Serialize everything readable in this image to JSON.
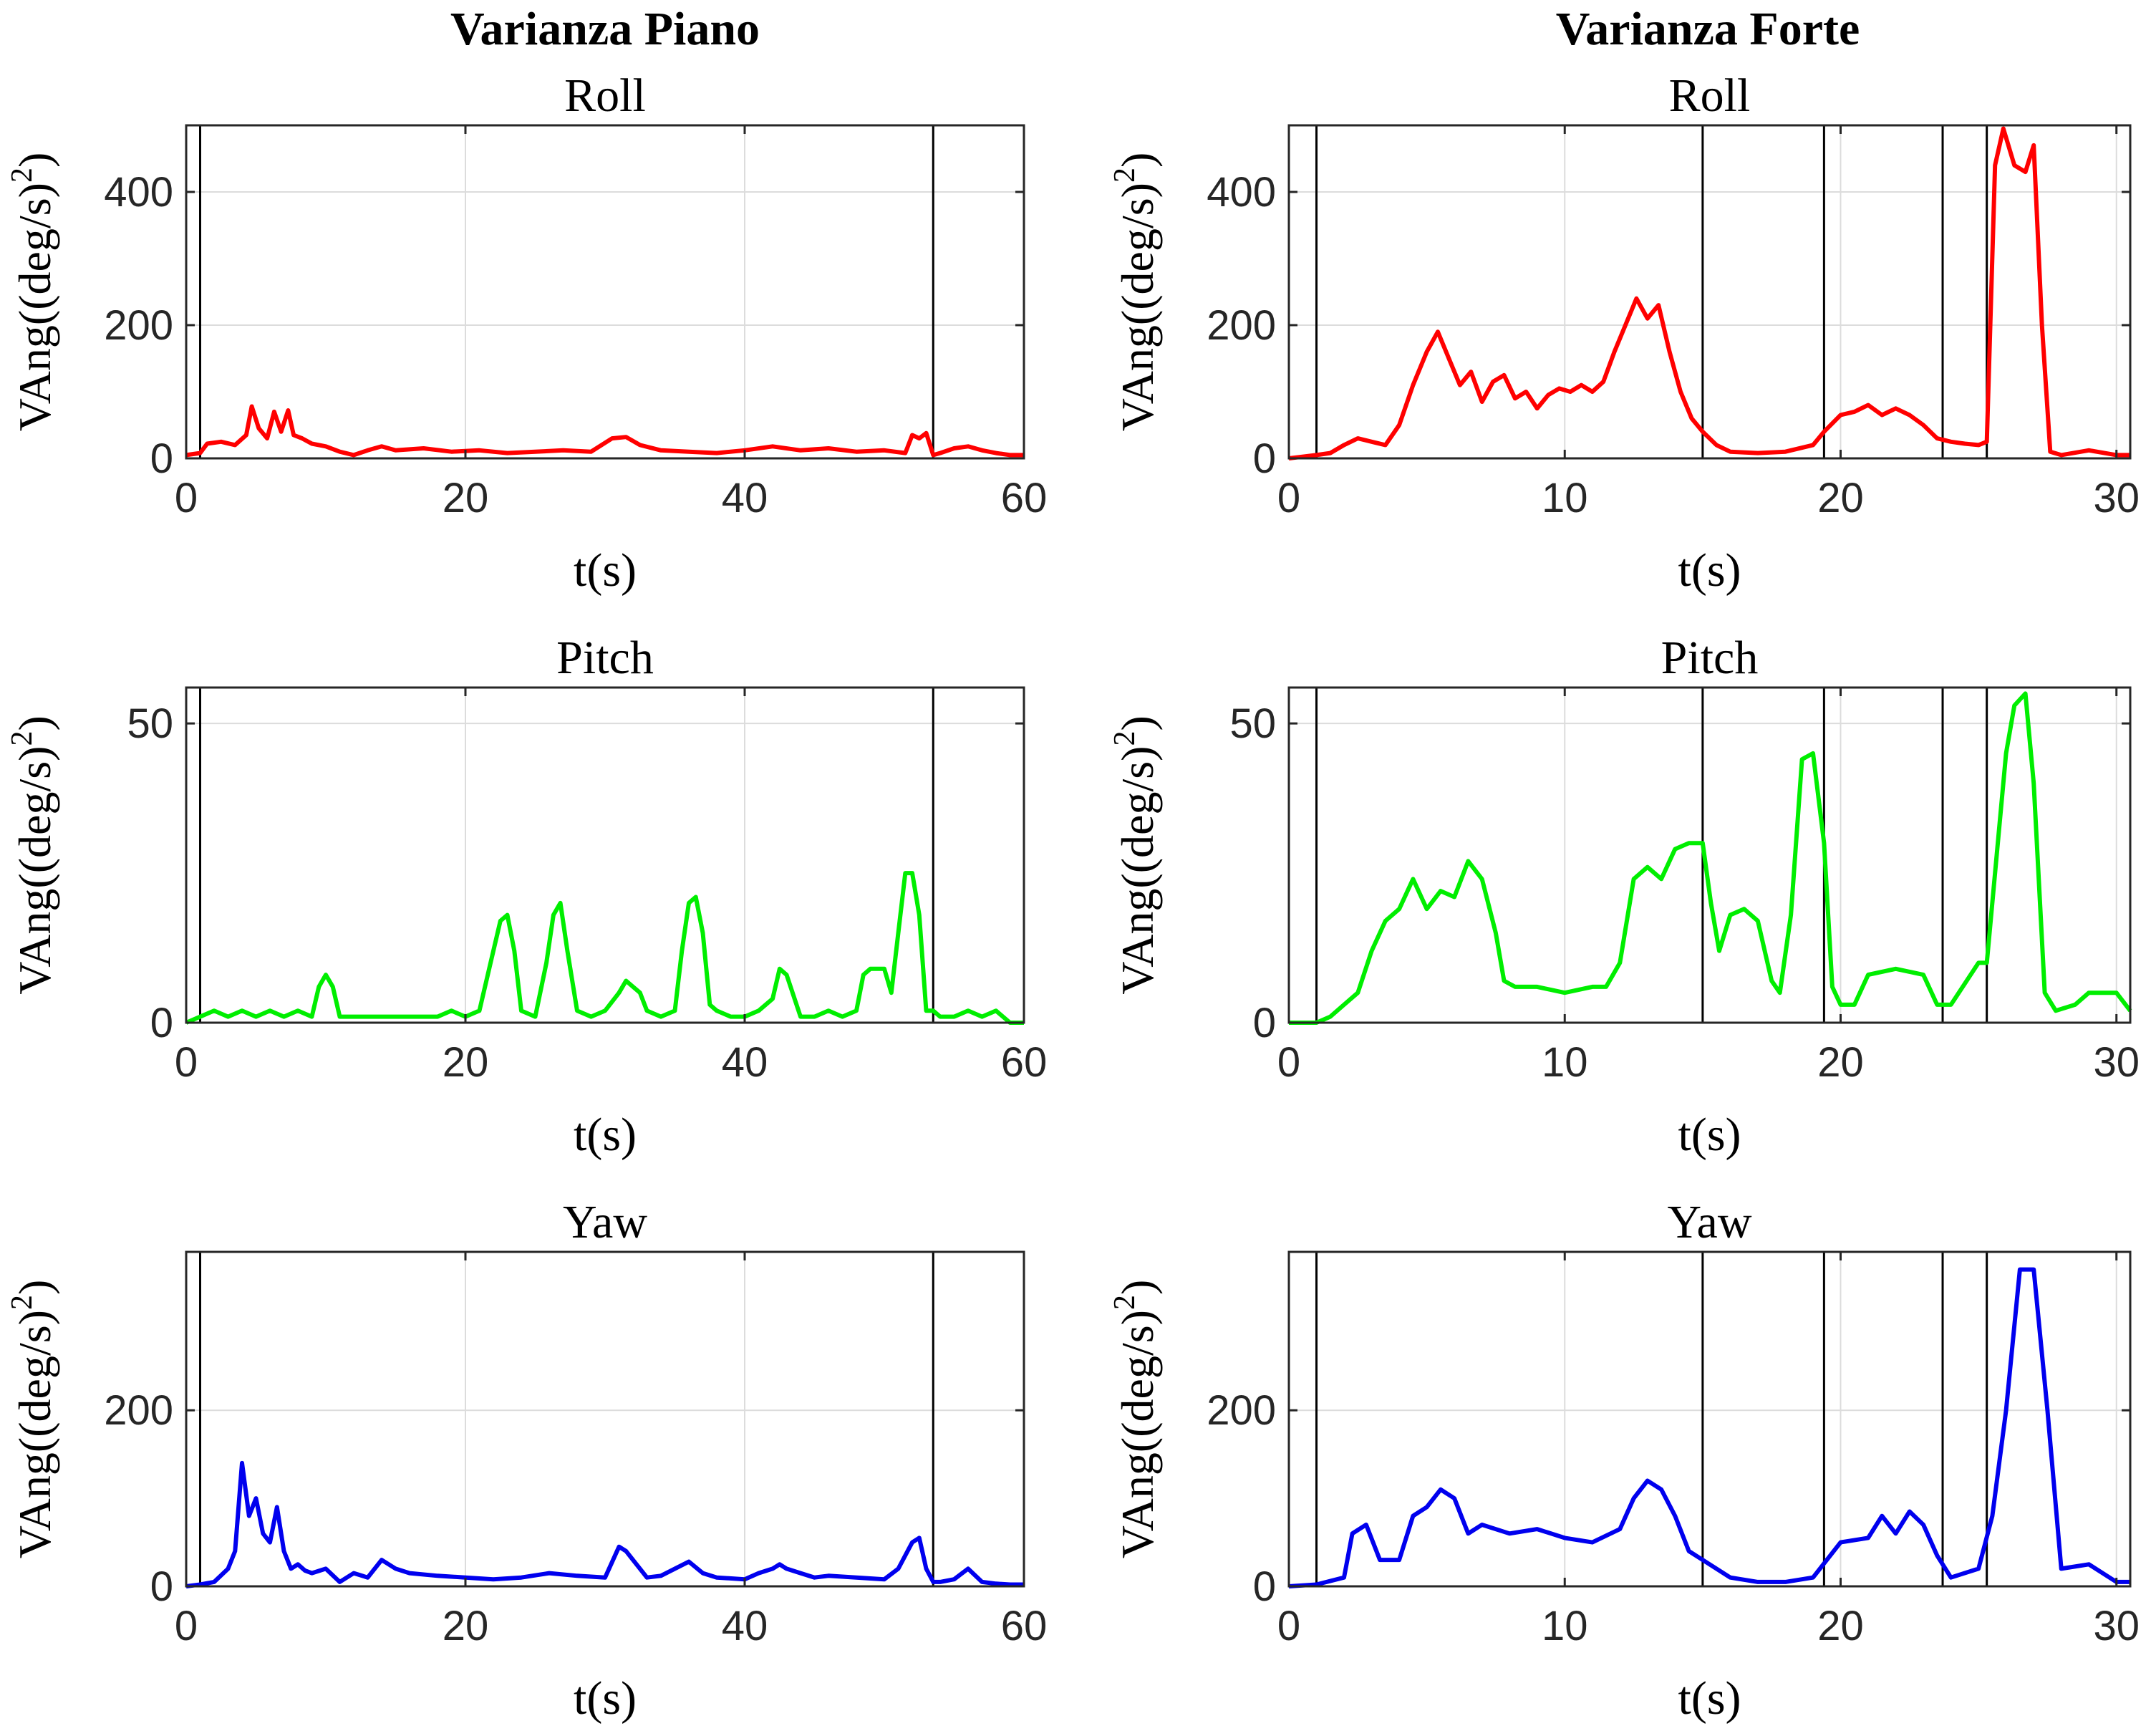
{
  "figure": {
    "column_titles": [
      "Varianza Piano",
      "Varianza Forte"
    ]
  },
  "chart_data": [
    {
      "type": "line",
      "column_title": "Varianza Piano",
      "title": "Roll",
      "xlabel": "t(s)",
      "ylabel": "VAng((deg/s)",
      "ylabel_superscript": "2",
      "ylabel_suffix": ")",
      "xlim": [
        0,
        60
      ],
      "ylim": [
        0,
        500
      ],
      "xticks": [
        0,
        20,
        40,
        60
      ],
      "yticks": [
        0,
        200,
        400
      ],
      "grid": true,
      "color": "#ff0000",
      "vlines": [
        1,
        53.5
      ],
      "series": [
        {
          "x": [
            0,
            1,
            1.5,
            2.5,
            3.5,
            4.3,
            4.7,
            5.2,
            5.8,
            6.3,
            6.8,
            7.3,
            7.7,
            8.3,
            9,
            10,
            11,
            12,
            13,
            14,
            15,
            17,
            19,
            21,
            23,
            25,
            27,
            29,
            30.5,
            31.5,
            32.5,
            34,
            36,
            38,
            40,
            42,
            44,
            46,
            48,
            50,
            51.5,
            52,
            52.5,
            53,
            53.5,
            54,
            55,
            56,
            57,
            58,
            59,
            60
          ],
          "y": [
            5,
            8,
            22,
            25,
            20,
            35,
            78,
            45,
            30,
            70,
            40,
            72,
            35,
            30,
            22,
            18,
            10,
            5,
            12,
            18,
            12,
            15,
            10,
            12,
            8,
            10,
            12,
            10,
            30,
            32,
            20,
            12,
            10,
            8,
            12,
            18,
            12,
            15,
            10,
            12,
            8,
            35,
            30,
            38,
            5,
            8,
            15,
            18,
            12,
            8,
            5,
            5
          ]
        }
      ]
    },
    {
      "type": "line",
      "column_title": "Varianza Forte",
      "title": "Roll",
      "xlabel": "t(s)",
      "ylabel": "VAng((deg/s)",
      "ylabel_superscript": "2",
      "ylabel_suffix": ")",
      "xlim": [
        0,
        30.5
      ],
      "ylim": [
        0,
        500
      ],
      "xticks": [
        0,
        10,
        20,
        30
      ],
      "yticks": [
        0,
        200,
        400
      ],
      "grid": true,
      "color": "#ff0000",
      "vlines": [
        1,
        15,
        19.4,
        23.7,
        25.3
      ],
      "series": [
        {
          "x": [
            0,
            1,
            1.5,
            2,
            2.5,
            3,
            3.5,
            4,
            4.5,
            5,
            5.4,
            5.8,
            6.2,
            6.6,
            7,
            7.4,
            7.8,
            8.2,
            8.6,
            9,
            9.4,
            9.8,
            10.2,
            10.6,
            11,
            11.4,
            11.8,
            12.2,
            12.6,
            13,
            13.4,
            13.8,
            14.2,
            14.6,
            15,
            15.5,
            16,
            17,
            18,
            19,
            19.4,
            20,
            20.5,
            21,
            21.5,
            22,
            22.5,
            23,
            23.5,
            24,
            24.5,
            25,
            25.3,
            25.6,
            25.9,
            26.3,
            26.7,
            27,
            27.3,
            27.6,
            28,
            29,
            30,
            30.5
          ],
          "y": [
            0,
            5,
            8,
            20,
            30,
            25,
            20,
            50,
            110,
            160,
            190,
            150,
            110,
            130,
            85,
            115,
            125,
            90,
            100,
            75,
            95,
            105,
            100,
            110,
            100,
            115,
            160,
            200,
            240,
            210,
            230,
            160,
            100,
            60,
            40,
            20,
            10,
            8,
            10,
            20,
            40,
            65,
            70,
            80,
            65,
            75,
            65,
            50,
            30,
            25,
            22,
            20,
            25,
            440,
            495,
            440,
            430,
            470,
            200,
            10,
            5,
            12,
            5,
            5
          ]
        }
      ]
    },
    {
      "type": "line",
      "column_title": "Varianza Piano",
      "title": "Pitch",
      "xlabel": "t(s)",
      "ylabel": "VAng((deg/s)",
      "ylabel_superscript": "2",
      "ylabel_suffix": ")",
      "xlim": [
        0,
        60
      ],
      "ylim": [
        0,
        56
      ],
      "xticks": [
        0,
        20,
        40,
        60
      ],
      "yticks": [
        0,
        50
      ],
      "grid": true,
      "color": "#00ee00",
      "vlines": [
        1,
        53.5
      ],
      "series": [
        {
          "x": [
            0,
            1,
            2,
            3,
            4,
            5,
            6,
            7,
            8,
            9,
            9.5,
            10,
            10.5,
            11,
            12,
            14,
            16,
            18,
            19,
            20,
            21,
            21.8,
            22.5,
            23,
            23.5,
            24,
            25,
            25.8,
            26.3,
            26.8,
            27.3,
            28,
            29,
            30,
            31,
            31.5,
            32.5,
            33,
            34,
            35,
            35.5,
            36,
            36.5,
            37,
            37.5,
            38,
            39,
            40,
            41,
            42,
            42.5,
            43,
            44,
            45,
            46,
            47,
            48,
            48.5,
            49,
            50,
            50.5,
            51,
            51.5,
            52,
            52.5,
            53,
            53.5,
            54,
            55,
            56,
            57,
            58,
            59,
            60
          ],
          "y": [
            0,
            1,
            2,
            1,
            2,
            1,
            2,
            1,
            2,
            1,
            6,
            8,
            6,
            1,
            1,
            1,
            1,
            1,
            2,
            1,
            2,
            10,
            17,
            18,
            12,
            2,
            1,
            10,
            18,
            20,
            12,
            2,
            1,
            2,
            5,
            7,
            5,
            2,
            1,
            2,
            12,
            20,
            21,
            15,
            3,
            2,
            1,
            1,
            2,
            4,
            9,
            8,
            1,
            1,
            2,
            1,
            2,
            8,
            9,
            9,
            5,
            15,
            25,
            25,
            18,
            2,
            2,
            1,
            1,
            2,
            1,
            2,
            0,
            0
          ]
        }
      ]
    },
    {
      "type": "line",
      "column_title": "Varianza Forte",
      "title": "Pitch",
      "xlabel": "t(s)",
      "ylabel": "VAng((deg/s)",
      "ylabel_superscript": "2",
      "ylabel_suffix": ")",
      "xlim": [
        0,
        30.5
      ],
      "ylim": [
        0,
        56
      ],
      "xticks": [
        0,
        10,
        20,
        30
      ],
      "yticks": [
        0,
        50
      ],
      "grid": true,
      "color": "#00ee00",
      "vlines": [
        1,
        15,
        19.4,
        23.7,
        25.3
      ],
      "series": [
        {
          "x": [
            0,
            1,
            1.5,
            2,
            2.5,
            3,
            3.5,
            4,
            4.5,
            5,
            5.5,
            6,
            6.5,
            7,
            7.5,
            7.8,
            8.2,
            9,
            10,
            11,
            11.5,
            12,
            12.5,
            13,
            13.5,
            14,
            14.5,
            15,
            15.3,
            15.6,
            16,
            16.5,
            17,
            17.5,
            17.8,
            18.2,
            18.6,
            19,
            19.4,
            19.7,
            20,
            20.5,
            21,
            22,
            23,
            23.5,
            23.7,
            24,
            25,
            25.3,
            25.6,
            26,
            26.3,
            26.7,
            27,
            27.4,
            27.8,
            28.5,
            29,
            30,
            30.5
          ],
          "y": [
            0,
            0,
            1,
            3,
            5,
            12,
            17,
            19,
            24,
            19,
            22,
            21,
            27,
            24,
            15,
            7,
            6,
            6,
            5,
            6,
            6,
            10,
            24,
            26,
            24,
            29,
            30,
            30,
            20,
            12,
            18,
            19,
            17,
            7,
            5,
            18,
            44,
            45,
            30,
            6,
            3,
            3,
            8,
            9,
            8,
            3,
            3,
            3,
            10,
            10,
            25,
            45,
            53,
            55,
            40,
            5,
            2,
            3,
            5,
            5,
            2
          ]
        }
      ]
    },
    {
      "type": "line",
      "column_title": "Varianza Piano",
      "title": "Yaw",
      "xlabel": "t(s)",
      "ylabel": "VAng((deg/s)",
      "ylabel_superscript": "2",
      "ylabel_suffix": ")",
      "xlim": [
        0,
        60
      ],
      "ylim": [
        0,
        380
      ],
      "xticks": [
        0,
        20,
        40,
        60
      ],
      "yticks": [
        0,
        200
      ],
      "grid": true,
      "color": "#0000ee",
      "vlines": [
        1,
        53.5
      ],
      "series": [
        {
          "x": [
            0,
            1,
            2,
            3,
            3.5,
            4,
            4.5,
            5,
            5.5,
            6,
            6.5,
            7,
            7.5,
            8,
            8.5,
            9,
            10,
            11,
            12,
            13,
            14,
            15,
            16,
            18,
            20,
            22,
            24,
            26,
            28,
            30,
            31,
            31.5,
            32,
            33,
            34,
            35,
            36,
            37,
            38,
            40,
            41,
            42,
            42.5,
            43,
            44,
            45,
            46,
            48,
            50,
            51,
            52,
            52.5,
            53,
            53.5,
            54,
            55,
            56,
            57,
            58,
            59,
            60
          ],
          "y": [
            0,
            2,
            5,
            20,
            40,
            140,
            80,
            100,
            60,
            50,
            90,
            40,
            20,
            25,
            18,
            15,
            20,
            5,
            15,
            10,
            30,
            20,
            15,
            12,
            10,
            8,
            10,
            15,
            12,
            10,
            45,
            40,
            30,
            10,
            12,
            20,
            28,
            15,
            10,
            8,
            15,
            20,
            25,
            20,
            15,
            10,
            12,
            10,
            8,
            20,
            50,
            55,
            20,
            5,
            5,
            8,
            20,
            5,
            3,
            2,
            2
          ]
        }
      ]
    },
    {
      "type": "line",
      "column_title": "Varianza Forte",
      "title": "Yaw",
      "xlabel": "t(s)",
      "ylabel": "VAng((deg/s)",
      "ylabel_superscript": "2",
      "ylabel_suffix": ")",
      "xlim": [
        0,
        30.5
      ],
      "ylim": [
        0,
        380
      ],
      "xticks": [
        0,
        10,
        20,
        30
      ],
      "yticks": [
        0,
        200
      ],
      "grid": true,
      "color": "#0000ee",
      "vlines": [
        1,
        15,
        19.4,
        23.7,
        25.3
      ],
      "series": [
        {
          "x": [
            0,
            1,
            2,
            2.3,
            2.8,
            3.3,
            4,
            4.5,
            5,
            5.5,
            6,
            6.5,
            7,
            8,
            9,
            10,
            11,
            12,
            12.5,
            13,
            13.5,
            14,
            14.5,
            15,
            16,
            17,
            18,
            19,
            20,
            21,
            21.5,
            22,
            22.5,
            23,
            23.5,
            24,
            25,
            25.5,
            26,
            26.5,
            27,
            27.5,
            28,
            29,
            30,
            30.5
          ],
          "y": [
            0,
            2,
            10,
            60,
            70,
            30,
            30,
            80,
            90,
            110,
            100,
            60,
            70,
            60,
            65,
            55,
            50,
            65,
            100,
            120,
            110,
            80,
            40,
            30,
            10,
            5,
            5,
            10,
            50,
            55,
            80,
            60,
            85,
            70,
            35,
            10,
            20,
            80,
            200,
            360,
            360,
            200,
            20,
            25,
            5,
            5
          ]
        }
      ]
    }
  ]
}
